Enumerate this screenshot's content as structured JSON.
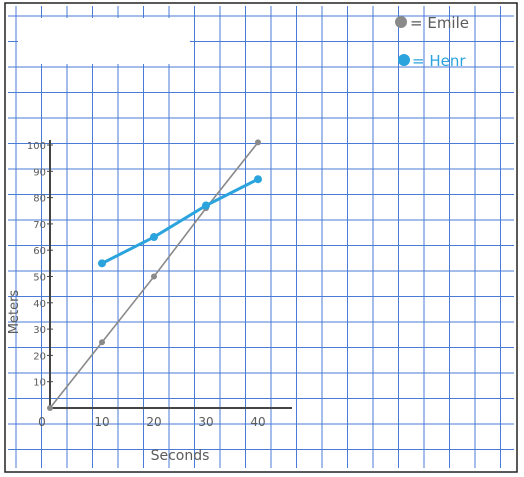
{
  "chart_data": {
    "type": "line",
    "title": "",
    "xlabel": "Seconds",
    "ylabel": "Meters",
    "xlim": [
      0,
      40
    ],
    "ylim": [
      0,
      100
    ],
    "x_ticks": [
      "0",
      "10",
      "20",
      "30",
      "40"
    ],
    "y_ticks": [
      "10",
      "20",
      "30",
      "40",
      "50",
      "60",
      "70",
      "80",
      "90",
      "100"
    ],
    "grid": true,
    "legend_position": "top-right",
    "series": [
      {
        "name": "Emile",
        "legend_label": "= Emile",
        "color": "#8a8a8a",
        "x": [
          0,
          10,
          20,
          30,
          40
        ],
        "y": [
          0,
          25,
          50,
          76,
          101
        ]
      },
      {
        "name": "Henry",
        "legend_label": "= Henr",
        "color": "#2ba3dd",
        "x": [
          10,
          20,
          30,
          40
        ],
        "y": [
          55,
          65,
          77,
          87
        ]
      }
    ]
  },
  "colors": {
    "grid": "#4a7bd6",
    "axis": "#444444",
    "redaction_box": "#ffffff"
  }
}
